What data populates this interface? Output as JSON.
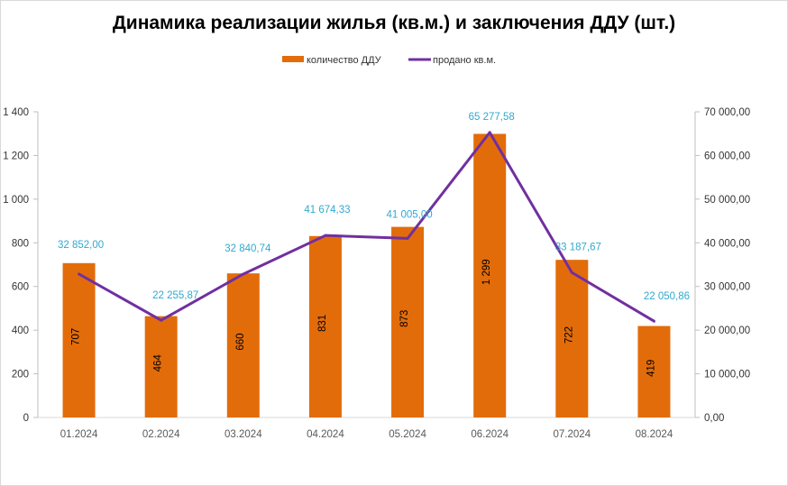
{
  "chart_data": {
    "type": "bar+line",
    "title": "Динамика реализации жилья (кв.м.) и заключения ДДУ (шт.)",
    "categories": [
      "01.2024",
      "02.2024",
      "03.2024",
      "04.2024",
      "05.2024",
      "06.2024",
      "07.2024",
      "08.2024"
    ],
    "series": [
      {
        "name": "количество ДДУ",
        "type": "bar",
        "axis": "left",
        "color": "#e36c0a",
        "values": [
          707,
          464,
          660,
          831,
          873,
          1299,
          722,
          419
        ],
        "labels": [
          "707",
          "464",
          "660",
          "831",
          "873",
          "1 299",
          "722",
          "419"
        ]
      },
      {
        "name": "продано кв.м.",
        "type": "line",
        "axis": "right",
        "color": "#7030a0",
        "values": [
          32852.0,
          22255.87,
          32840.74,
          41674.33,
          41005.0,
          65277.58,
          33187.67,
          22050.86
        ],
        "labels": [
          "32 852,00",
          "22 255,87",
          "32 840,74",
          "41 674,33",
          "41 005,00",
          "65 277,58",
          "33 187,67",
          "22 050,86"
        ],
        "label_color": "#31a9cf"
      }
    ],
    "left_axis": {
      "ylim": [
        0,
        1400
      ],
      "ticks": [
        "0",
        "200",
        "400",
        "600",
        "800",
        "1 000",
        "1 200",
        "1 400"
      ]
    },
    "right_axis": {
      "ylim": [
        0,
        70000
      ],
      "ticks": [
        "0,00",
        "10 000,00",
        "20 000,00",
        "30 000,00",
        "40 000,00",
        "50 000,00",
        "60 000,00",
        "70 000,00"
      ]
    },
    "grid": false,
    "legend_position": "top"
  }
}
